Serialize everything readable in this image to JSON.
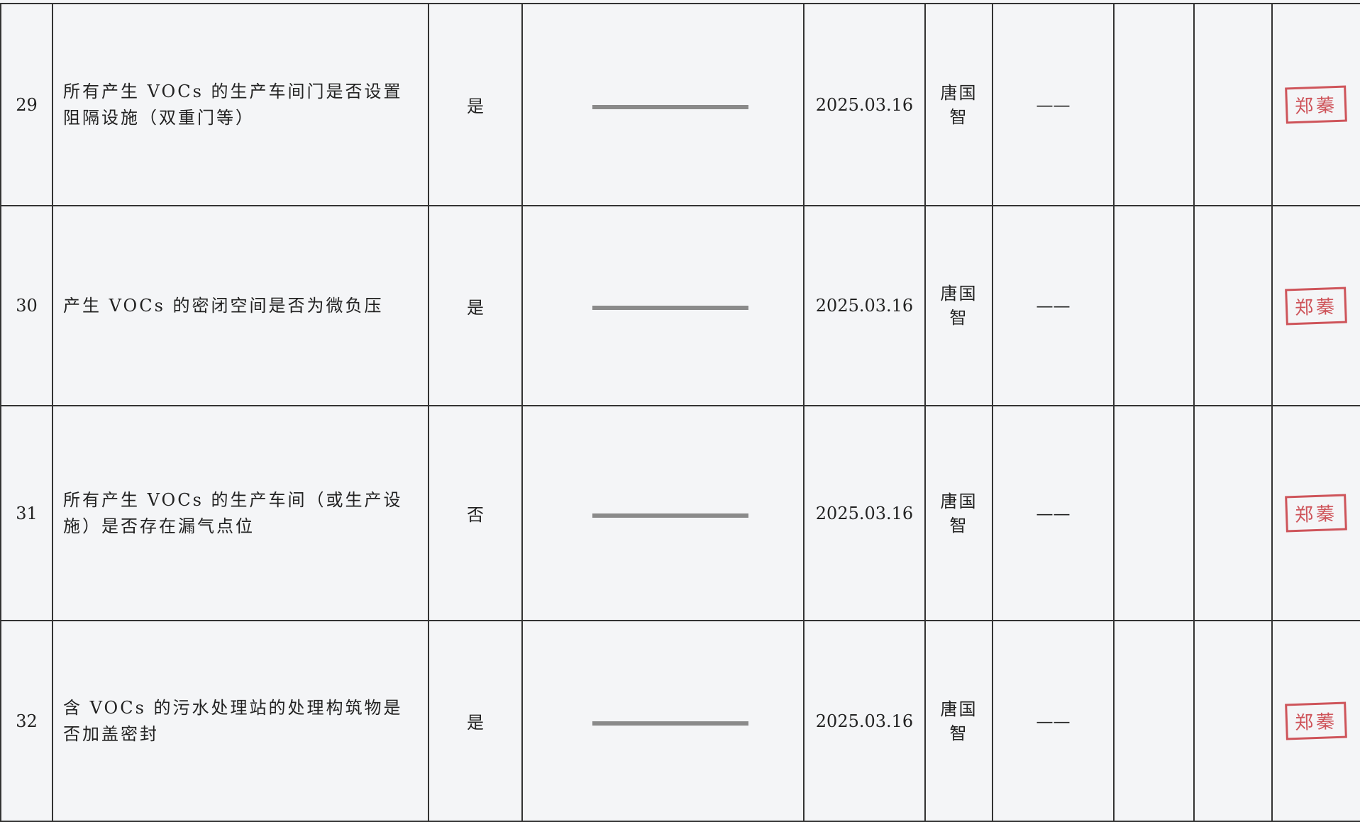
{
  "table": {
    "rows": [
      {
        "no": "29",
        "item": "所有产生 VOCs 的生产车间门是否设置阻隔设施（双重门等）",
        "result": "是",
        "date": "2025.03.16",
        "inspector": "唐国智",
        "remark": "——",
        "signature": "郑蓁"
      },
      {
        "no": "30",
        "item": "产生 VOCs 的密闭空间是否为微负压",
        "result": "是",
        "date": "2025.03.16",
        "inspector": "唐国智",
        "remark": "——",
        "signature": "郑蓁"
      },
      {
        "no": "31",
        "item": "所有产生 VOCs 的生产车间（或生产设施）是否存在漏气点位",
        "result": "否",
        "date": "2025.03.16",
        "inspector": "唐国智",
        "remark": "——",
        "signature": "郑蓁"
      },
      {
        "no": "32",
        "item": "含 VOCs 的污水处理站的处理构筑物是否加盖密封",
        "result": "是",
        "date": "2025.03.16",
        "inspector": "唐国智",
        "remark": "——",
        "signature": "郑蓁"
      }
    ]
  }
}
